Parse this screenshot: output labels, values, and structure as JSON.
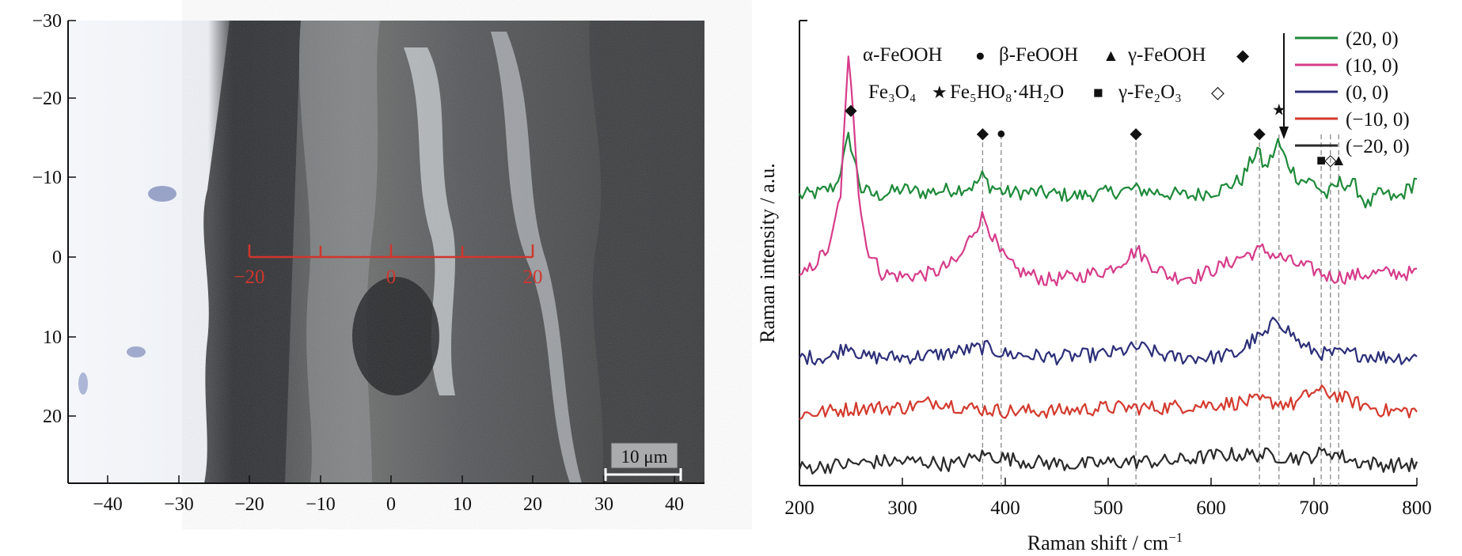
{
  "micrograph": {
    "x_ticks": [
      "−40",
      "−30",
      "−20",
      "−10",
      "0",
      "10",
      "20",
      "30",
      "40"
    ],
    "y_ticks": [
      "−30",
      "−20",
      "−10",
      "0",
      "10",
      "20"
    ],
    "line_labels": [
      "−20",
      "0",
      "20"
    ],
    "scale_bar_label": "10 μm",
    "colors": {
      "line": "#d0362c",
      "axis": "#111111"
    }
  },
  "chart_data": {
    "type": "line",
    "xlabel": "Raman shift / cm",
    "xlabel_sup": "−1",
    "ylabel": "Raman intensity / a.u.",
    "xlim": [
      200,
      800
    ],
    "x_ticks": [
      200,
      300,
      400,
      500,
      600,
      700,
      800
    ],
    "y_ticks_shown": false,
    "legend_position": "top-right",
    "series": [
      {
        "name": "(20, 0)",
        "color": "#1e8a3a",
        "offset": 4.0,
        "points": [
          [
            200,
            0.05
          ],
          [
            220,
            0.1
          ],
          [
            235,
            0.2
          ],
          [
            242,
            0.55
          ],
          [
            248,
            0.95
          ],
          [
            253,
            0.6
          ],
          [
            260,
            0.15
          ],
          [
            275,
            0.05
          ],
          [
            300,
            0.15
          ],
          [
            320,
            0.1
          ],
          [
            350,
            0.15
          ],
          [
            370,
            0.2
          ],
          [
            378,
            0.35
          ],
          [
            385,
            0.2
          ],
          [
            400,
            0.1
          ],
          [
            430,
            0.1
          ],
          [
            470,
            0.05
          ],
          [
            500,
            0.1
          ],
          [
            525,
            0.15
          ],
          [
            550,
            0.1
          ],
          [
            580,
            0.05
          ],
          [
            610,
            0.15
          ],
          [
            630,
            0.3
          ],
          [
            645,
            0.75
          ],
          [
            652,
            0.45
          ],
          [
            658,
            0.6
          ],
          [
            665,
            0.85
          ],
          [
            672,
            0.6
          ],
          [
            685,
            0.3
          ],
          [
            700,
            0.25
          ],
          [
            712,
            0.05
          ],
          [
            725,
            0.25
          ],
          [
            740,
            0.2
          ],
          [
            752,
            -0.1
          ],
          [
            765,
            0.1
          ],
          [
            780,
            0.0
          ],
          [
            795,
            0.2
          ],
          [
            800,
            0.35
          ]
        ]
      },
      {
        "name": "(10, 0)",
        "color": "#d63c8a",
        "offset": 2.8,
        "points": [
          [
            200,
            0.0
          ],
          [
            215,
            0.25
          ],
          [
            230,
            0.5
          ],
          [
            240,
            1.3
          ],
          [
            245,
            2.6
          ],
          [
            248,
            3.4
          ],
          [
            252,
            2.6
          ],
          [
            258,
            1.2
          ],
          [
            265,
            0.5
          ],
          [
            280,
            0.1
          ],
          [
            300,
            0.05
          ],
          [
            330,
            0.1
          ],
          [
            355,
            0.3
          ],
          [
            368,
            0.7
          ],
          [
            378,
            0.95
          ],
          [
            385,
            0.75
          ],
          [
            395,
            0.4
          ],
          [
            410,
            0.15
          ],
          [
            440,
            0.0
          ],
          [
            470,
            0.05
          ],
          [
            500,
            0.15
          ],
          [
            515,
            0.3
          ],
          [
            528,
            0.45
          ],
          [
            540,
            0.25
          ],
          [
            560,
            0.05
          ],
          [
            585,
            0.05
          ],
          [
            610,
            0.2
          ],
          [
            630,
            0.35
          ],
          [
            650,
            0.45
          ],
          [
            665,
            0.35
          ],
          [
            680,
            0.25
          ],
          [
            700,
            0.15
          ],
          [
            715,
            0.05
          ],
          [
            730,
            0.05
          ],
          [
            760,
            0.1
          ],
          [
            785,
            0.1
          ],
          [
            800,
            0.1
          ]
        ]
      },
      {
        "name": "(0, 0)",
        "color": "#2c2f78",
        "offset": 1.6,
        "points": [
          [
            200,
            0.05
          ],
          [
            230,
            0.05
          ],
          [
            248,
            0.25
          ],
          [
            262,
            0.05
          ],
          [
            300,
            0.05
          ],
          [
            340,
            0.1
          ],
          [
            380,
            0.2
          ],
          [
            400,
            0.1
          ],
          [
            450,
            0.05
          ],
          [
            500,
            0.1
          ],
          [
            530,
            0.2
          ],
          [
            560,
            0.05
          ],
          [
            600,
            0.05
          ],
          [
            625,
            0.1
          ],
          [
            640,
            0.3
          ],
          [
            655,
            0.4
          ],
          [
            663,
            0.65
          ],
          [
            672,
            0.5
          ],
          [
            690,
            0.2
          ],
          [
            710,
            0.1
          ],
          [
            740,
            0.1
          ],
          [
            770,
            0.05
          ],
          [
            800,
            0.05
          ]
        ]
      },
      {
        "name": "(−10, 0)",
        "color": "#d33a2e",
        "offset": 0.8,
        "points": [
          [
            200,
            0.0
          ],
          [
            230,
            0.05
          ],
          [
            260,
            0.1
          ],
          [
            300,
            0.1
          ],
          [
            335,
            0.2
          ],
          [
            360,
            0.1
          ],
          [
            400,
            0.05
          ],
          [
            450,
            0.05
          ],
          [
            500,
            0.1
          ],
          [
            550,
            0.1
          ],
          [
            600,
            0.15
          ],
          [
            650,
            0.2
          ],
          [
            680,
            0.15
          ],
          [
            700,
            0.35
          ],
          [
            720,
            0.3
          ],
          [
            745,
            0.15
          ],
          [
            770,
            0.05
          ],
          [
            800,
            0.05
          ]
        ]
      },
      {
        "name": "(−20, 0)",
        "color": "#2a2a2a",
        "offset": 0.0,
        "points": [
          [
            200,
            0.0
          ],
          [
            240,
            0.05
          ],
          [
            280,
            0.1
          ],
          [
            320,
            0.1
          ],
          [
            350,
            0.05
          ],
          [
            380,
            0.2
          ],
          [
            420,
            0.1
          ],
          [
            470,
            0.05
          ],
          [
            520,
            0.1
          ],
          [
            560,
            0.1
          ],
          [
            610,
            0.2
          ],
          [
            650,
            0.2
          ],
          [
            690,
            0.15
          ],
          [
            715,
            0.25
          ],
          [
            740,
            0.1
          ],
          [
            770,
            0.05
          ],
          [
            800,
            0.05
          ]
        ]
      }
    ],
    "legend_arrow": true,
    "phase_key": [
      {
        "label": "α-FeOOH",
        "symbol": "●"
      },
      {
        "label": "β-FeOOH",
        "symbol": "▲"
      },
      {
        "label": "γ-FeOOH",
        "symbol": "◆"
      },
      {
        "label": "Fe₃O₄",
        "symbol": "★"
      },
      {
        "label": "Fe₅HO₈·4H₂O",
        "symbol": "■"
      },
      {
        "label": "γ-Fe₂O₃",
        "symbol": "◇"
      }
    ],
    "peak_markers": [
      {
        "x": 250,
        "symbol": "◆",
        "level": 5.35
      },
      {
        "x": 378,
        "symbol": "◆",
        "level": 5.0
      },
      {
        "x": 396,
        "symbol": "●",
        "level": 5.0
      },
      {
        "x": 527,
        "symbol": "◆",
        "level": 5.0
      },
      {
        "x": 647,
        "symbol": "◆",
        "level": 5.0
      },
      {
        "x": 666,
        "symbol": "★",
        "level": 5.35
      },
      {
        "x": 707,
        "symbol": "■",
        "level": 4.6
      },
      {
        "x": 716,
        "symbol": "◇",
        "level": 4.6
      },
      {
        "x": 724,
        "symbol": "▲",
        "level": 4.6
      }
    ],
    "dashed_lines": [
      378,
      396,
      527,
      647,
      666,
      707,
      716,
      724
    ]
  }
}
